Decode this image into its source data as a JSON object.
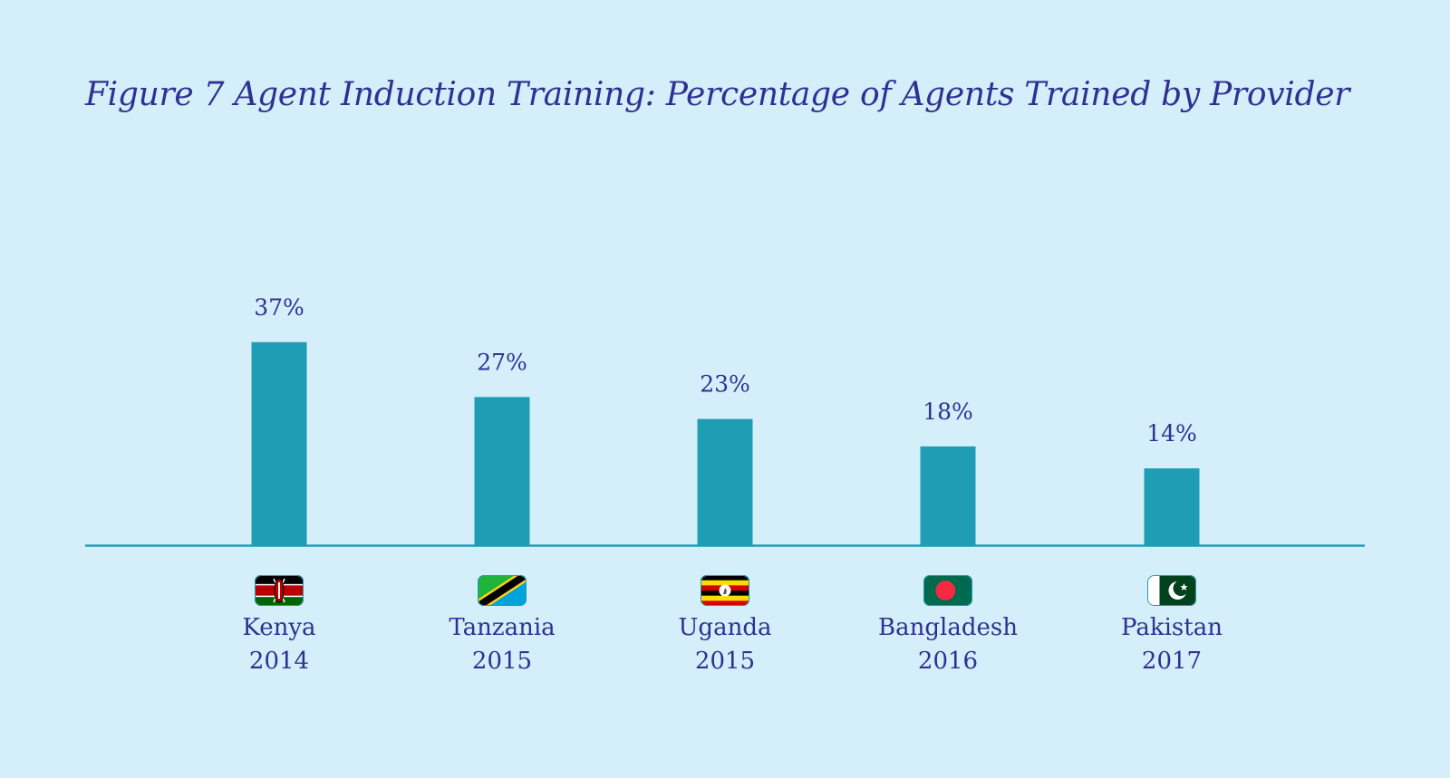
{
  "title": "Figure 7 Agent Induction Training: Percentage of Agents Trained by Provider",
  "colors": {
    "background": "#d4eefa",
    "bar": "#1e9db5",
    "axis": "#1e9db5",
    "text": "#2e3192"
  },
  "chart_data": {
    "type": "bar",
    "title": "Figure 7 Agent Induction Training: Percentage of Agents Trained by Provider",
    "xlabel": "",
    "ylabel": "",
    "categories": [
      "Kenya",
      "Tanzania",
      "Uganda",
      "Bangladesh",
      "Pakistan"
    ],
    "years": [
      "2014",
      "2015",
      "2015",
      "2016",
      "2017"
    ],
    "flags": [
      "kenya-flag-icon",
      "tanzania-flag-icon",
      "uganda-flag-icon",
      "bangladesh-flag-icon",
      "pakistan-flag-icon"
    ],
    "values": [
      37,
      27,
      23,
      18,
      14
    ],
    "value_labels": [
      "37%",
      "27%",
      "23%",
      "18%",
      "14%"
    ],
    "unit": "%",
    "ylim": [
      0,
      40
    ],
    "grid": false,
    "legend": "none"
  }
}
